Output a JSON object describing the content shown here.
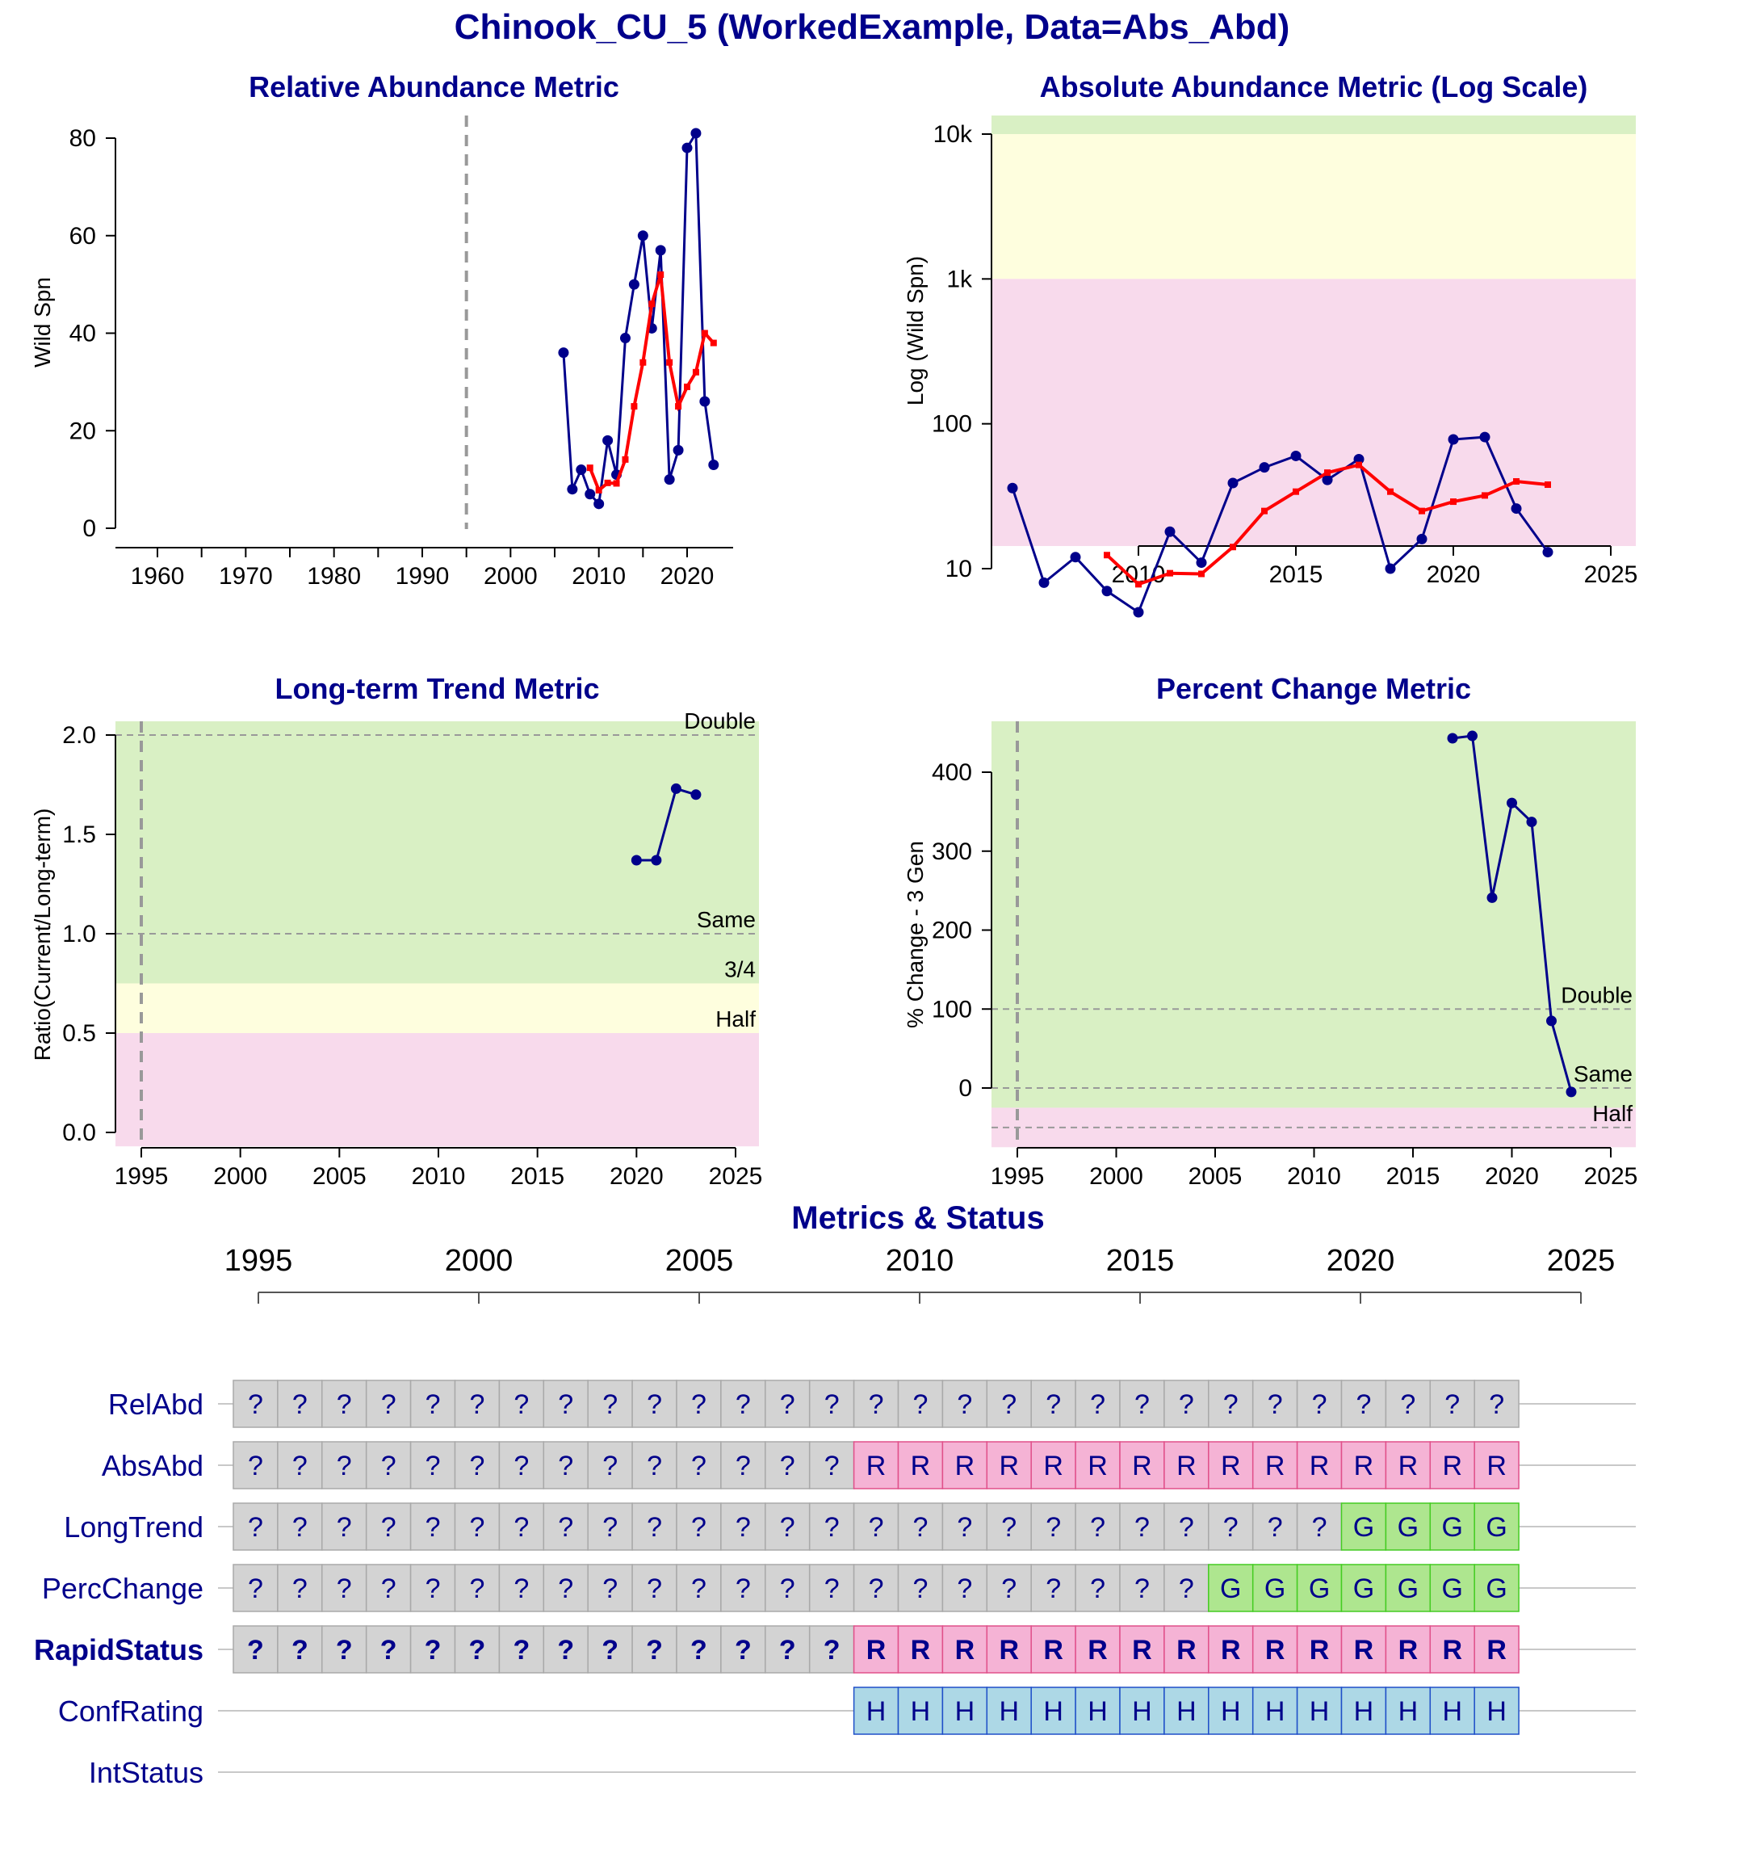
{
  "title": "Chinook_CU_5 (WorkedExample, Data=Abs_Abd)",
  "colors": {
    "title": "#00008B",
    "series_obs": "#00008B",
    "series_avg": "#FF0000",
    "zone_green": "#D9F0C4",
    "zone_yellow": "#FEFEDE",
    "zone_red": "#F8DAEC",
    "status_grey": "#D3D3D3",
    "status_red": "#F5B3D5",
    "status_green": "#AEE68F",
    "status_blue": "#ADD8E6"
  },
  "chart_data": [
    {
      "id": "relabd",
      "type": "line",
      "title": "Relative Abundance Metric",
      "xlabel": "",
      "ylabel": "Wild Spn",
      "xlim": [
        1960,
        2024
      ],
      "ylim": [
        0,
        80
      ],
      "xticks": [
        1960,
        1970,
        1980,
        1990,
        2000,
        2010,
        2020
      ],
      "yticks": [
        0,
        20,
        40,
        60,
        80
      ],
      "vline": 1995,
      "series": [
        {
          "role": "observed",
          "x": [
            2006,
            2007,
            2008,
            2009,
            2010,
            2011,
            2012,
            2013,
            2014,
            2015,
            2016,
            2017,
            2018,
            2019,
            2020,
            2021,
            2022,
            2023
          ],
          "y": [
            36,
            8,
            12,
            7,
            5,
            18,
            11,
            39,
            50,
            60,
            41,
            57,
            10,
            16,
            78,
            81,
            26,
            13
          ]
        },
        {
          "role": "generational_average",
          "x": [
            2009,
            2010,
            2011,
            2012,
            2013,
            2014,
            2015,
            2016,
            2017,
            2018,
            2019,
            2020,
            2021,
            2022,
            2023
          ],
          "y": [
            12.4,
            7.8,
            9.3,
            9.2,
            14.1,
            25,
            34,
            46,
            52,
            34,
            25,
            29,
            32,
            40,
            38
          ]
        }
      ]
    },
    {
      "id": "absabd",
      "type": "line",
      "title": "Absolute Abundance Metric (Log Scale)",
      "xlabel": "",
      "ylabel": "Log (Wild Spn)",
      "yscale": "log",
      "xlim": [
        2005,
        2026
      ],
      "ylim": [
        1.8,
        14500
      ],
      "xticks": [
        2010,
        2015,
        2020,
        2025
      ],
      "yticks": [
        10,
        100,
        1000,
        10000
      ],
      "ytick_labels": [
        "10",
        "100",
        "1k",
        "10k"
      ],
      "zones": [
        {
          "from": 10000,
          "to": 14500,
          "color": "green"
        },
        {
          "from": 1000,
          "to": 10000,
          "color": "yellow"
        },
        {
          "from": 1.8,
          "to": 1000,
          "color": "red"
        }
      ],
      "series": [
        {
          "role": "observed",
          "x": [
            2006,
            2007,
            2008,
            2009,
            2010,
            2011,
            2012,
            2013,
            2014,
            2015,
            2016,
            2017,
            2018,
            2019,
            2020,
            2021,
            2022,
            2023
          ],
          "y": [
            36,
            8,
            12,
            7,
            5,
            18,
            11,
            39,
            50,
            60,
            41,
            57,
            10,
            16,
            78,
            81,
            26,
            13
          ]
        },
        {
          "role": "generational_average",
          "x": [
            2009,
            2010,
            2011,
            2012,
            2013,
            2014,
            2015,
            2016,
            2017,
            2018,
            2019,
            2020,
            2021,
            2022,
            2023
          ],
          "y": [
            12.4,
            7.8,
            9.3,
            9.2,
            14.1,
            25,
            34,
            46,
            52,
            34,
            25,
            29,
            32,
            40,
            38
          ]
        }
      ]
    },
    {
      "id": "longtrend",
      "type": "line",
      "title": "Long-term Trend Metric",
      "xlabel": "",
      "ylabel": "Ratio(Current/Long-term)",
      "xlim": [
        1994,
        2026
      ],
      "ylim": [
        -0.07,
        2.07
      ],
      "xticks": [
        1995,
        2000,
        2005,
        2010,
        2015,
        2020,
        2025
      ],
      "yticks": [
        0.0,
        0.5,
        1.0,
        1.5,
        2.0
      ],
      "ytick_labels": [
        "0.0",
        "0.5",
        "1.0",
        "1.5",
        "2.0"
      ],
      "vline": 1995,
      "zones": [
        {
          "from": 0.75,
          "to": 2.07,
          "color": "green"
        },
        {
          "from": 0.5,
          "to": 0.75,
          "color": "yellow"
        },
        {
          "from": -0.07,
          "to": 0.5,
          "color": "red"
        }
      ],
      "reflines": [
        {
          "y": 2.0,
          "label": "Double",
          "dashed": true
        },
        {
          "y": 1.0,
          "label": "Same",
          "dashed": true
        },
        {
          "y": 0.75,
          "label": "3/4",
          "dashed": false
        },
        {
          "y": 0.5,
          "label": "Half",
          "dashed": false
        }
      ],
      "series": [
        {
          "role": "observed",
          "x": [
            2020,
            2021,
            2022,
            2023
          ],
          "y": [
            1.37,
            1.37,
            1.73,
            1.7
          ]
        }
      ]
    },
    {
      "id": "percchange",
      "type": "line",
      "title": "Percent Change Metric",
      "xlabel": "",
      "ylabel": "% Change - 3 Gen",
      "xlim": [
        1994,
        2026
      ],
      "ylim": [
        -75,
        468
      ],
      "xticks": [
        1995,
        2000,
        2005,
        2010,
        2015,
        2020,
        2025
      ],
      "yticks": [
        0,
        100,
        200,
        300,
        400
      ],
      "vline": 1995,
      "zones": [
        {
          "from": -25,
          "to": 468,
          "color": "green"
        },
        {
          "from": -75,
          "to": -25,
          "color": "red"
        }
      ],
      "reflines": [
        {
          "y": 100,
          "label": "Double",
          "dashed": true
        },
        {
          "y": 0,
          "label": "Same",
          "dashed": true
        },
        {
          "y": -50,
          "label": "Half",
          "dashed": true
        }
      ],
      "series": [
        {
          "role": "observed",
          "x": [
            2017,
            2018,
            2019,
            2020,
            2021,
            2022,
            2023
          ],
          "y": [
            443,
            446,
            241,
            361,
            337,
            85,
            -5
          ]
        }
      ]
    }
  ],
  "status_panel": {
    "title": "Metrics & Status",
    "axis_years": [
      1995,
      2000,
      2005,
      2010,
      2015,
      2020,
      2025
    ],
    "first_year": 1995,
    "rows": [
      {
        "label": "RelAbd",
        "bold": false,
        "cells": [
          "?",
          "?",
          "?",
          "?",
          "?",
          "?",
          "?",
          "?",
          "?",
          "?",
          "?",
          "?",
          "?",
          "?",
          "?",
          "?",
          "?",
          "?",
          "?",
          "?",
          "?",
          "?",
          "?",
          "?",
          "?",
          "?",
          "?",
          "?",
          "?"
        ]
      },
      {
        "label": "AbsAbd",
        "bold": false,
        "cells": [
          "?",
          "?",
          "?",
          "?",
          "?",
          "?",
          "?",
          "?",
          "?",
          "?",
          "?",
          "?",
          "?",
          "?",
          "R",
          "R",
          "R",
          "R",
          "R",
          "R",
          "R",
          "R",
          "R",
          "R",
          "R",
          "R",
          "R",
          "R",
          "R"
        ]
      },
      {
        "label": "LongTrend",
        "bold": false,
        "cells": [
          "?",
          "?",
          "?",
          "?",
          "?",
          "?",
          "?",
          "?",
          "?",
          "?",
          "?",
          "?",
          "?",
          "?",
          "?",
          "?",
          "?",
          "?",
          "?",
          "?",
          "?",
          "?",
          "?",
          "?",
          "?",
          "G",
          "G",
          "G",
          "G"
        ]
      },
      {
        "label": "PercChange",
        "bold": false,
        "cells": [
          "?",
          "?",
          "?",
          "?",
          "?",
          "?",
          "?",
          "?",
          "?",
          "?",
          "?",
          "?",
          "?",
          "?",
          "?",
          "?",
          "?",
          "?",
          "?",
          "?",
          "?",
          "?",
          "G",
          "G",
          "G",
          "G",
          "G",
          "G",
          "G"
        ]
      },
      {
        "label": "RapidStatus",
        "bold": true,
        "cells": [
          "?",
          "?",
          "?",
          "?",
          "?",
          "?",
          "?",
          "?",
          "?",
          "?",
          "?",
          "?",
          "?",
          "?",
          "R",
          "R",
          "R",
          "R",
          "R",
          "R",
          "R",
          "R",
          "R",
          "R",
          "R",
          "R",
          "R",
          "R",
          "R"
        ]
      },
      {
        "label": "ConfRating",
        "bold": false,
        "cells": [
          "",
          "",
          "",
          "",
          "",
          "",
          "",
          "",
          "",
          "",
          "",
          "",
          "",
          "",
          "H",
          "H",
          "H",
          "H",
          "H",
          "H",
          "H",
          "H",
          "H",
          "H",
          "H",
          "H",
          "H",
          "H",
          "H"
        ]
      },
      {
        "label": "IntStatus",
        "bold": false,
        "cells": []
      }
    ]
  }
}
